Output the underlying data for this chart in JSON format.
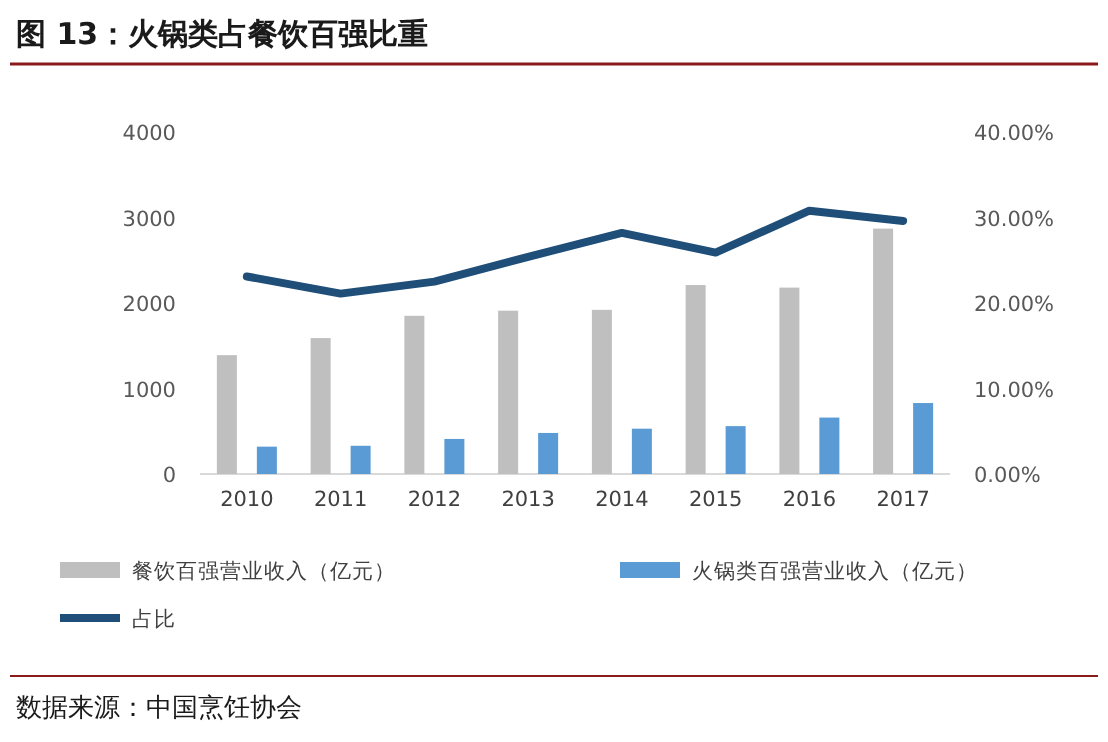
{
  "chart_data": {
    "type": "bar",
    "title": "图 13：火锅类占餐饮百强比重",
    "categories": [
      "2010",
      "2011",
      "2012",
      "2013",
      "2014",
      "2015",
      "2016",
      "2017"
    ],
    "series": [
      {
        "name": "餐饮百强营业收入（亿元）",
        "color": "#bfbfbf",
        "values": [
          1390,
          1590,
          1850,
          1910,
          1920,
          2210,
          2180,
          2870
        ]
      },
      {
        "name": "火锅类百强营业收入（亿元）",
        "color": "#5b9bd5",
        "values": [
          320,
          330,
          410,
          480,
          530,
          560,
          660,
          830
        ]
      },
      {
        "name": "占比",
        "type": "line",
        "axis": "y2",
        "color": "#1f4e79",
        "values": [
          23.1,
          21.1,
          22.5,
          25.4,
          28.2,
          25.9,
          30.8,
          29.6
        ]
      }
    ],
    "ylim": [
      0,
      4000
    ],
    "yticks": [
      0,
      1000,
      2000,
      3000,
      4000
    ],
    "y2lim": [
      0,
      40
    ],
    "y2ticks": [
      {
        "value": 0,
        "label": "0.00%"
      },
      {
        "value": 10,
        "label": "10.00%"
      },
      {
        "value": 20,
        "label": "20.00%"
      },
      {
        "value": 30,
        "label": "30.00%"
      },
      {
        "value": 40,
        "label": "40.00%"
      }
    ],
    "legend": "bottom",
    "annotations": [
      "数据来源：中国烹饪协会"
    ]
  }
}
